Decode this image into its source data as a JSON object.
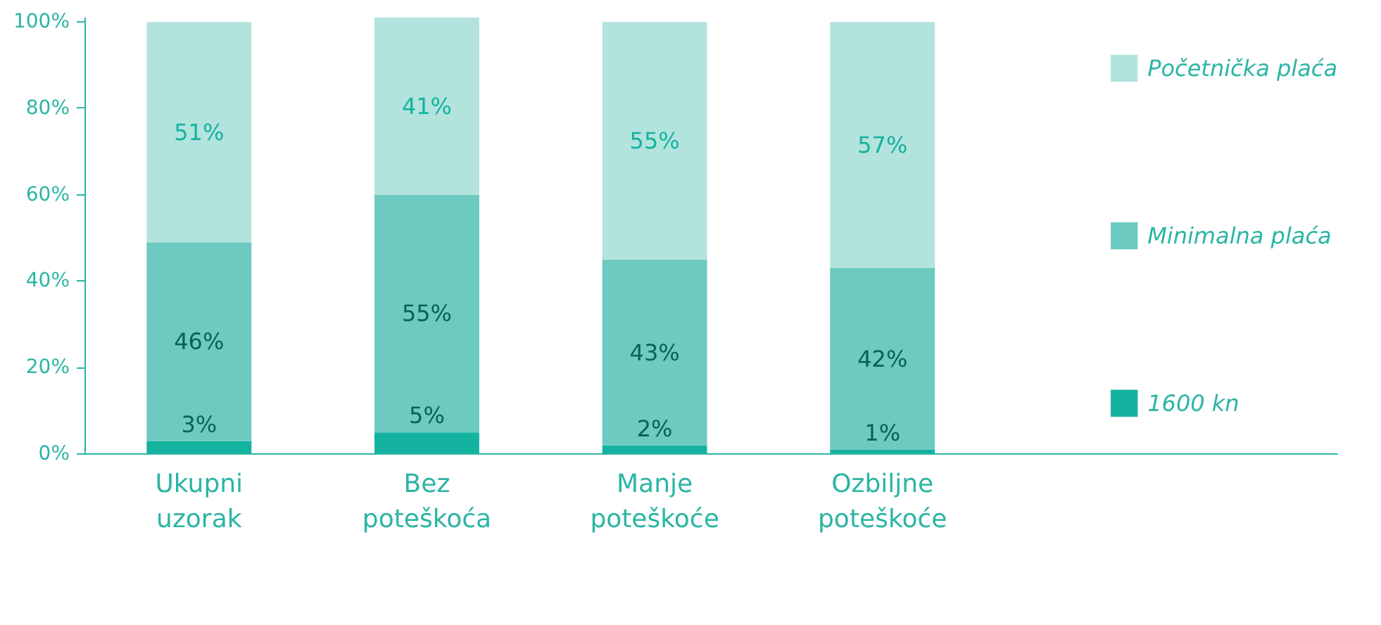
{
  "chart_data": {
    "type": "bar",
    "stacked": true,
    "categories": [
      "Ukupni uzorak",
      "Bez poteškoća",
      "Manje poteškoće",
      "Ozbiljne poteškoće"
    ],
    "series": [
      {
        "name": "1600 kn",
        "color": "#14b3a0",
        "values": [
          3,
          5,
          2,
          1
        ]
      },
      {
        "name": "Minimalna plaća",
        "color": "#6ccac0",
        "values": [
          46,
          55,
          43,
          42
        ]
      },
      {
        "name": "Početnička plaća",
        "color": "#b3e3dd",
        "values": [
          51,
          41,
          55,
          57
        ]
      }
    ],
    "ylim": [
      0,
      101
    ],
    "yticks": [
      {
        "value": 0,
        "label": "0%"
      },
      {
        "value": 20,
        "label": "20%"
      },
      {
        "value": 40,
        "label": "40%"
      },
      {
        "value": 60,
        "label": "60%"
      },
      {
        "value": 80,
        "label": "80%"
      },
      {
        "value": 100,
        "label": "100%"
      }
    ],
    "value_labels": [
      [
        "3%",
        "5%",
        "2%",
        "1%"
      ],
      [
        "46%",
        "55%",
        "43%",
        "42%"
      ],
      [
        "51%",
        "41%",
        "55%",
        "57%"
      ]
    ],
    "legend": "right",
    "grid": false
  }
}
